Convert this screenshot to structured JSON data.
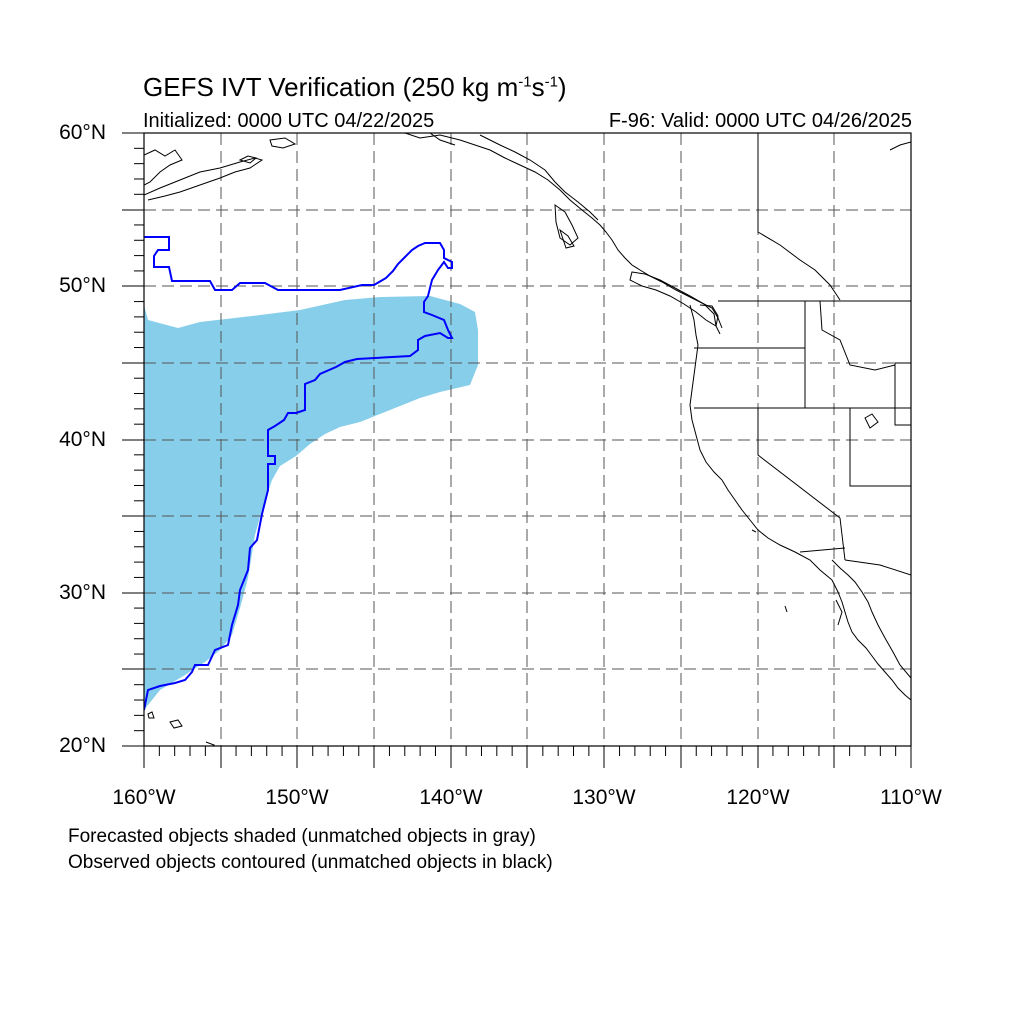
{
  "title": {
    "main": "GEFS IVT Verification (250 kg m",
    "exp1": "-1",
    "mid": "s",
    "exp2": "-1",
    "close": ")"
  },
  "subtitle_left": "Initialized: 0000 UTC 04/22/2025",
  "subtitle_right": "F-96: Valid: 0000 UTC 04/26/2025",
  "map": {
    "lon_range": [
      -160,
      -110
    ],
    "lat_range": [
      20,
      60
    ],
    "lat_labels": [
      "60°N",
      "50°N",
      "40°N",
      "30°N",
      "20°N"
    ],
    "lon_labels": [
      "160°W",
      "150°W",
      "140°W",
      "130°W",
      "120°W",
      "110°W"
    ],
    "grid_spacing_deg": 5,
    "colors": {
      "forecast_fill": "#87CEEB",
      "observed_contour": "#0000FF",
      "coastline": "#000000",
      "grid": "#555555"
    }
  },
  "captions": {
    "line1": "Forecasted objects shaded (unmatched objects in gray)",
    "line2": "Observed objects contoured (unmatched objects in black)"
  }
}
